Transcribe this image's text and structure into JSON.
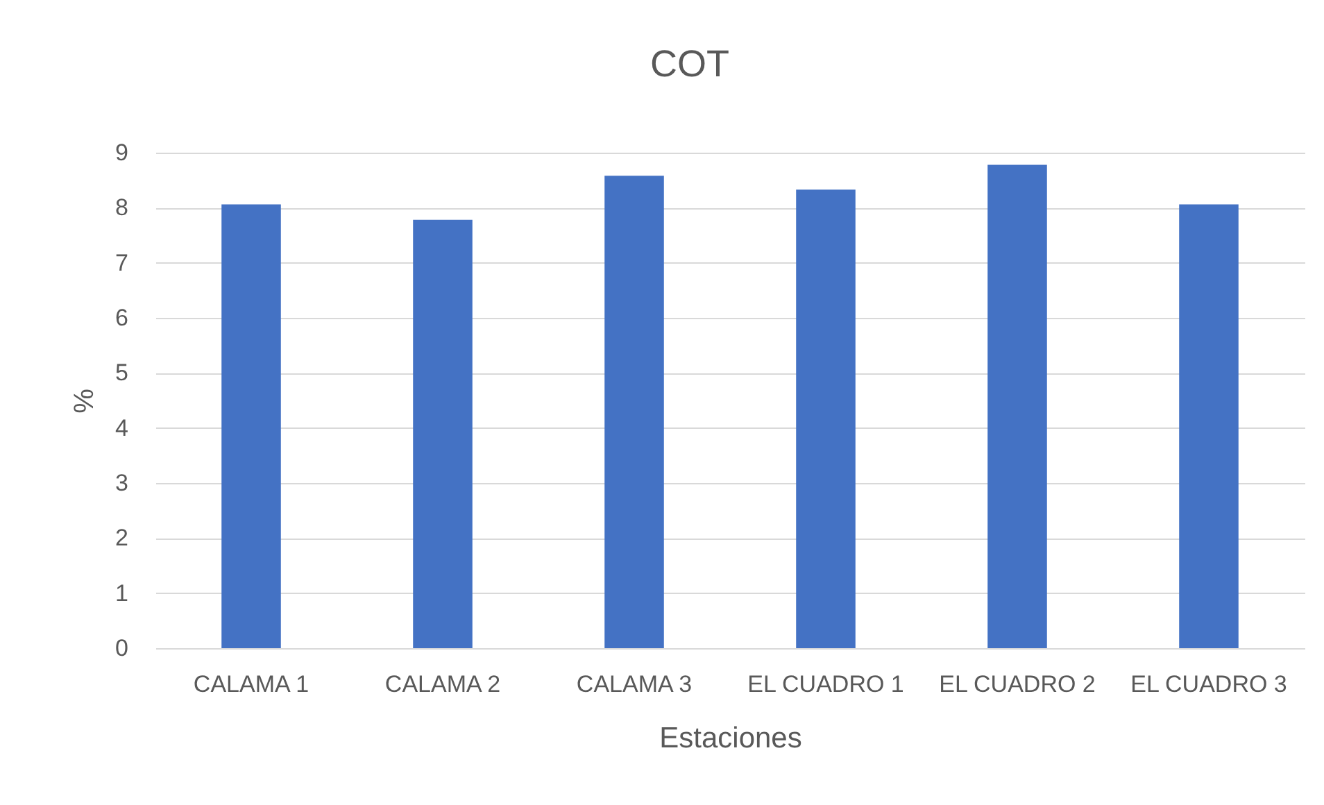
{
  "chart_data": {
    "type": "bar",
    "title": "COT",
    "xlabel": "Estaciones",
    "ylabel": "%",
    "categories": [
      "CALAMA 1",
      "CALAMA 2",
      "CALAMA 3",
      "EL CUADRO 1",
      "EL CUADRO 2",
      "EL CUADRO 3"
    ],
    "values": [
      8.06,
      7.78,
      8.58,
      8.33,
      8.78,
      8.06
    ],
    "color": "#4472c4",
    "ylim": [
      0,
      9
    ],
    "yticks": [
      0,
      1,
      2,
      3,
      4,
      5,
      6,
      7,
      8,
      9
    ],
    "grid": "y"
  }
}
